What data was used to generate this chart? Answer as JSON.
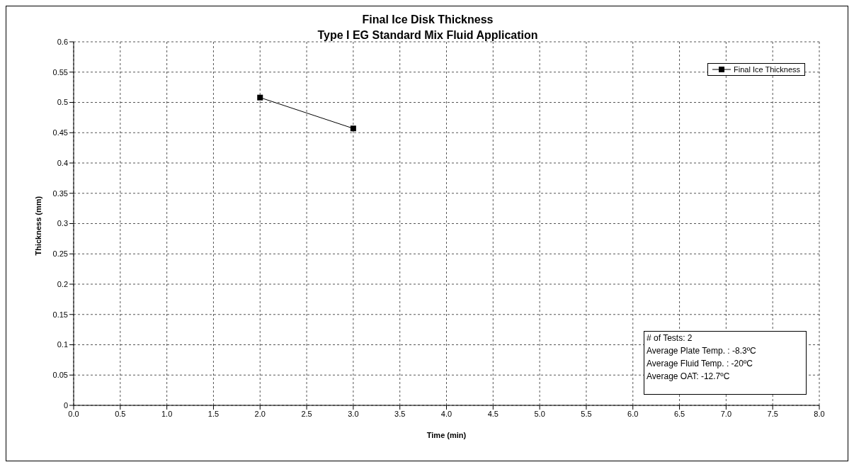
{
  "chart_data": {
    "type": "line",
    "title": "Final Ice Disk Thickness",
    "subtitle": "Type I EG Standard Mix Fluid Application",
    "xlabel": "Time (min)",
    "ylabel": "Thickness (mm)",
    "x": [
      2,
      3
    ],
    "series": [
      {
        "name": "Final Ice Thickness",
        "color": "#000000",
        "values": [
          0.508,
          0.457
        ]
      }
    ],
    "xlim": [
      0,
      8
    ],
    "xticks": [
      {
        "value": 0,
        "label": "0.0"
      },
      {
        "value": 0.5,
        "label": "0.5"
      },
      {
        "value": 1,
        "label": "1.0"
      },
      {
        "value": 1.5,
        "label": "1.5"
      },
      {
        "value": 2,
        "label": "2.0"
      },
      {
        "value": 2.5,
        "label": "2.5"
      },
      {
        "value": 3,
        "label": "3.0"
      },
      {
        "value": 3.5,
        "label": "3.5"
      },
      {
        "value": 4,
        "label": "4.0"
      },
      {
        "value": 4.5,
        "label": "4.5"
      },
      {
        "value": 5,
        "label": "5.0"
      },
      {
        "value": 5.5,
        "label": "5.5"
      },
      {
        "value": 6,
        "label": "6.0"
      },
      {
        "value": 6.5,
        "label": "6.5"
      },
      {
        "value": 7,
        "label": "7.0"
      },
      {
        "value": 7.5,
        "label": "7.5"
      },
      {
        "value": 8,
        "label": "8.0"
      }
    ],
    "ylim": [
      0,
      0.6
    ],
    "yticks": [
      0,
      0.05,
      0.1,
      0.15,
      0.2,
      0.25,
      0.3,
      0.35,
      0.4,
      0.45,
      0.5,
      0.55,
      0.6
    ],
    "grid": true,
    "legend": "top right",
    "marker": "square",
    "line_style": "solid",
    "annotations": [
      "# of Tests: 2",
      "Average Plate Temp. : -8.3ºC",
      "Average Fluid Temp. : -20ºC",
      "Average OAT: -12.7ºC"
    ]
  }
}
